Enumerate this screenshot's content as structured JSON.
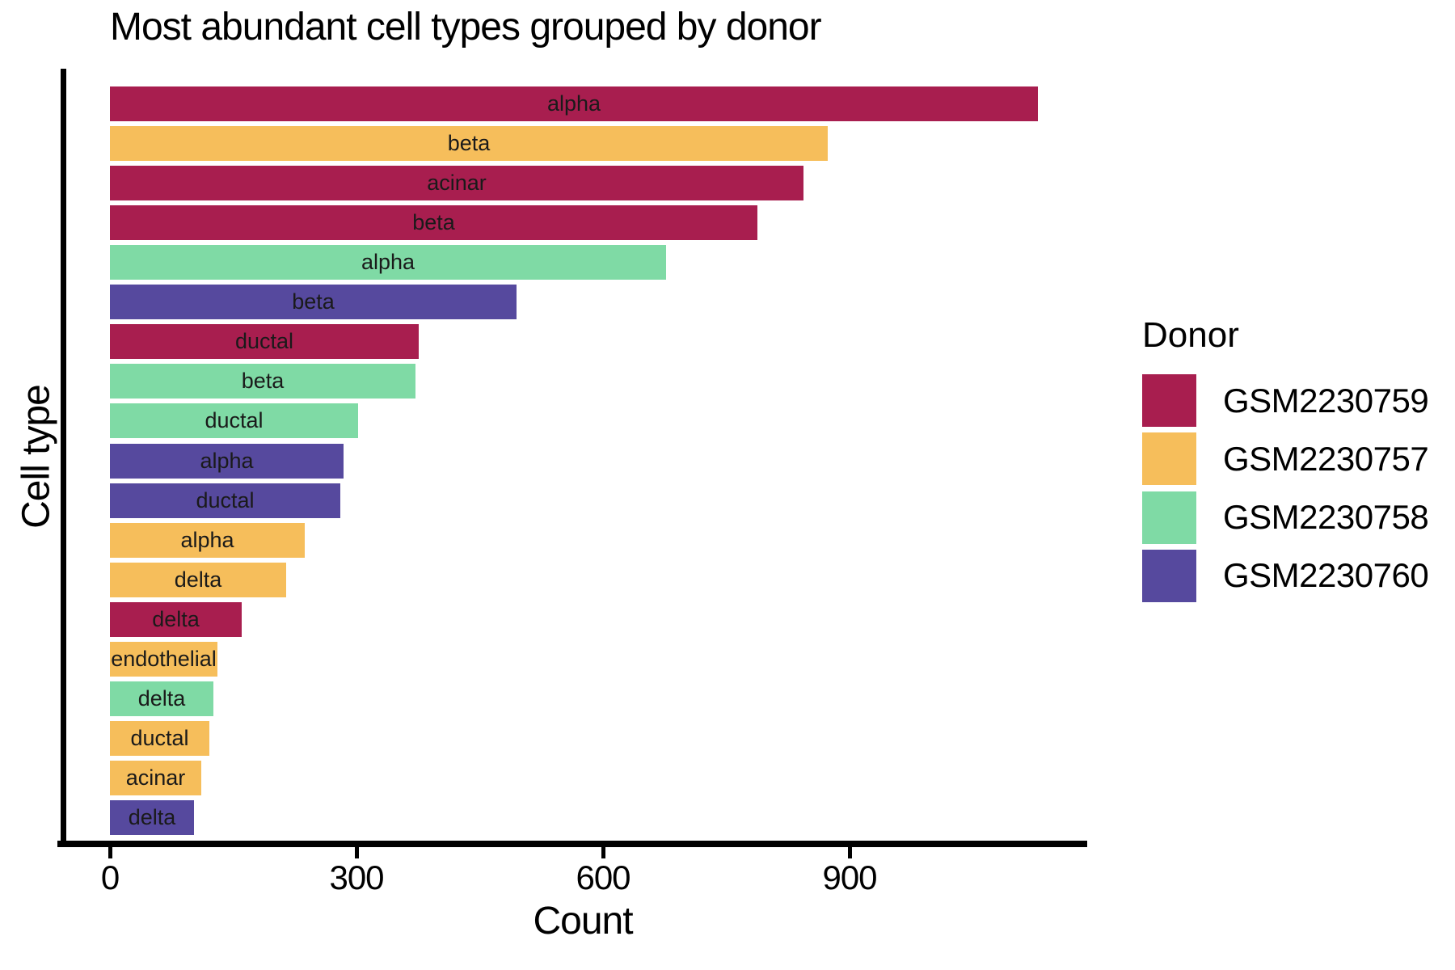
{
  "title": "Most abundant cell types grouped by donor",
  "chart_data": {
    "type": "bar",
    "orientation": "horizontal",
    "title": "Most abundant cell types grouped by donor",
    "xlabel": "Count",
    "ylabel": "Cell type",
    "xlim": [
      0,
      1190
    ],
    "x_ticks": [
      0,
      300,
      600,
      900
    ],
    "grid": false,
    "legend": {
      "title": "Donor",
      "position": "right",
      "entries": [
        {
          "label": "GSM2230759",
          "color": "#A81E4F"
        },
        {
          "label": "GSM2230757",
          "color": "#F6BE5B"
        },
        {
          "label": "GSM2230758",
          "color": "#7FDAA5"
        },
        {
          "label": "GSM2230760",
          "color": "#56499E"
        }
      ]
    },
    "bars": [
      {
        "cell_type": "alpha",
        "donor": "GSM2230759",
        "value": 1129
      },
      {
        "cell_type": "beta",
        "donor": "GSM2230757",
        "value": 873
      },
      {
        "cell_type": "acinar",
        "donor": "GSM2230759",
        "value": 844
      },
      {
        "cell_type": "beta",
        "donor": "GSM2230759",
        "value": 788
      },
      {
        "cell_type": "alpha",
        "donor": "GSM2230758",
        "value": 677
      },
      {
        "cell_type": "beta",
        "donor": "GSM2230760",
        "value": 495
      },
      {
        "cell_type": "ductal",
        "donor": "GSM2230759",
        "value": 376
      },
      {
        "cell_type": "beta",
        "donor": "GSM2230758",
        "value": 372
      },
      {
        "cell_type": "ductal",
        "donor": "GSM2230758",
        "value": 302
      },
      {
        "cell_type": "alpha",
        "donor": "GSM2230760",
        "value": 284
      },
      {
        "cell_type": "ductal",
        "donor": "GSM2230760",
        "value": 280
      },
      {
        "cell_type": "alpha",
        "donor": "GSM2230757",
        "value": 237
      },
      {
        "cell_type": "delta",
        "donor": "GSM2230757",
        "value": 214
      },
      {
        "cell_type": "delta",
        "donor": "GSM2230759",
        "value": 160
      },
      {
        "cell_type": "endothelial",
        "donor": "GSM2230757",
        "value": 131
      },
      {
        "cell_type": "delta",
        "donor": "GSM2230758",
        "value": 126
      },
      {
        "cell_type": "ductal",
        "donor": "GSM2230757",
        "value": 121
      },
      {
        "cell_type": "acinar",
        "donor": "GSM2230757",
        "value": 111
      },
      {
        "cell_type": "delta",
        "donor": "GSM2230760",
        "value": 102
      }
    ]
  }
}
